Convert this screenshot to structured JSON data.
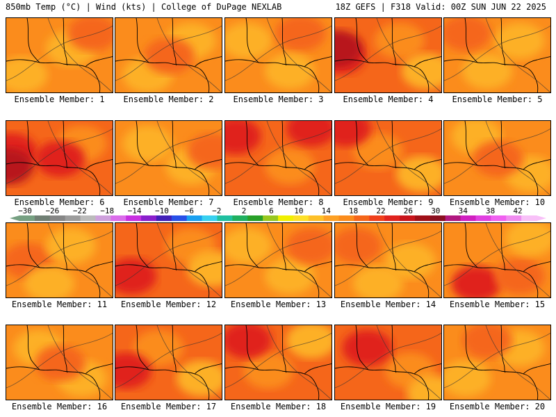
{
  "header": {
    "left": "850mb Temp (°C) | Wind (kts) | College of DuPage NEXLAB",
    "right": "18Z GEFS | F318 Valid: 00Z SUN JUN 22 2025"
  },
  "colors": {
    "light_orange": "#fdb027",
    "orange": "#fb8c1c",
    "dark_orange": "#f5661a",
    "red": "#e0231e",
    "dark_red": "#b8181b",
    "contour": "#000000"
  },
  "members": [
    {
      "label": "Ensemble Member: 1",
      "bg": "orange",
      "blobs": [
        [
          "light_orange",
          0.15,
          0.75
        ],
        [
          "light_orange",
          0.6,
          0.4
        ],
        [
          "dark_orange",
          0.8,
          0.2
        ]
      ]
    },
    {
      "label": "Ensemble Member: 2",
      "bg": "orange",
      "blobs": [
        [
          "light_orange",
          0.3,
          0.75
        ],
        [
          "light_orange",
          0.7,
          0.3
        ],
        [
          "dark_orange",
          0.5,
          0.5
        ]
      ]
    },
    {
      "label": "Ensemble Member: 3",
      "bg": "orange",
      "blobs": [
        [
          "light_orange",
          0.2,
          0.3
        ],
        [
          "dark_orange",
          0.7,
          0.2
        ],
        [
          "light_orange",
          0.6,
          0.7
        ]
      ]
    },
    {
      "label": "Ensemble Member: 4",
      "bg": "dark_orange",
      "blobs": [
        [
          "red",
          0.05,
          0.5
        ],
        [
          "dark_red",
          0.02,
          0.4
        ],
        [
          "orange",
          0.6,
          0.3
        ],
        [
          "light_orange",
          0.85,
          0.7
        ]
      ]
    },
    {
      "label": "Ensemble Member: 5",
      "bg": "orange",
      "blobs": [
        [
          "light_orange",
          0.7,
          0.3
        ],
        [
          "light_orange",
          0.4,
          0.7
        ],
        [
          "dark_orange",
          0.2,
          0.2
        ]
      ]
    },
    {
      "label": "Ensemble Member: 6",
      "bg": "dark_orange",
      "blobs": [
        [
          "red",
          0.05,
          0.4
        ],
        [
          "dark_red",
          0.02,
          0.6
        ],
        [
          "orange",
          0.7,
          0.3
        ],
        [
          "red",
          0.5,
          0.5
        ]
      ]
    },
    {
      "label": "Ensemble Member: 7",
      "bg": "orange",
      "blobs": [
        [
          "light_orange",
          0.3,
          0.3
        ],
        [
          "light_orange",
          0.7,
          0.6
        ],
        [
          "dark_orange",
          0.9,
          0.4
        ]
      ]
    },
    {
      "label": "Ensemble Member: 8",
      "bg": "dark_orange",
      "blobs": [
        [
          "red",
          0.1,
          0.2
        ],
        [
          "orange",
          0.6,
          0.6
        ],
        [
          "red",
          0.8,
          0.1
        ]
      ]
    },
    {
      "label": "Ensemble Member: 9",
      "bg": "dark_orange",
      "blobs": [
        [
          "orange",
          0.4,
          0.4
        ],
        [
          "light_orange",
          0.8,
          0.7
        ],
        [
          "red",
          0.1,
          0.1
        ]
      ]
    },
    {
      "label": "Ensemble Member: 10",
      "bg": "orange",
      "blobs": [
        [
          "light_orange",
          0.3,
          0.2
        ],
        [
          "light_orange",
          0.8,
          0.7
        ],
        [
          "dark_orange",
          0.5,
          0.5
        ]
      ]
    },
    {
      "label": "Ensemble Member: 11",
      "bg": "orange",
      "blobs": [
        [
          "dark_orange",
          0.2,
          0.5
        ],
        [
          "light_orange",
          0.6,
          0.3
        ],
        [
          "light_orange",
          0.4,
          0.8
        ]
      ]
    },
    {
      "label": "Ensemble Member: 12",
      "bg": "dark_orange",
      "blobs": [
        [
          "red",
          0.15,
          0.7
        ],
        [
          "orange",
          0.7,
          0.3
        ],
        [
          "light_orange",
          0.9,
          0.6
        ]
      ]
    },
    {
      "label": "Ensemble Member: 13",
      "bg": "orange",
      "blobs": [
        [
          "light_orange",
          0.2,
          0.3
        ],
        [
          "light_orange",
          0.6,
          0.7
        ],
        [
          "dark_orange",
          0.8,
          0.3
        ]
      ]
    },
    {
      "label": "Ensemble Member: 14",
      "bg": "orange",
      "blobs": [
        [
          "dark_orange",
          0.2,
          0.3
        ],
        [
          "light_orange",
          0.7,
          0.5
        ],
        [
          "light_orange",
          0.4,
          0.8
        ]
      ]
    },
    {
      "label": "Ensemble Member: 15",
      "bg": "orange",
      "blobs": [
        [
          "red",
          0.3,
          0.8
        ],
        [
          "dark_orange",
          0.7,
          0.7
        ],
        [
          "light_orange",
          0.8,
          0.2
        ]
      ]
    },
    {
      "label": "Ensemble Member: 16",
      "bg": "orange",
      "blobs": [
        [
          "light_orange",
          0.3,
          0.3
        ],
        [
          "light_orange",
          0.7,
          0.7
        ],
        [
          "dark_orange",
          0.5,
          0.5
        ]
      ]
    },
    {
      "label": "Ensemble Member: 17",
      "bg": "dark_orange",
      "blobs": [
        [
          "orange",
          0.4,
          0.3
        ],
        [
          "light_orange",
          0.8,
          0.7
        ],
        [
          "red",
          0.1,
          0.6
        ]
      ]
    },
    {
      "label": "Ensemble Member: 18",
      "bg": "dark_orange",
      "blobs": [
        [
          "orange",
          0.4,
          0.6
        ],
        [
          "light_orange",
          0.8,
          0.2
        ],
        [
          "red",
          0.2,
          0.2
        ]
      ]
    },
    {
      "label": "Ensemble Member: 19",
      "bg": "dark_orange",
      "blobs": [
        [
          "orange",
          0.7,
          0.6
        ],
        [
          "light_orange",
          0.9,
          0.9
        ],
        [
          "red",
          0.3,
          0.3
        ]
      ]
    },
    {
      "label": "Ensemble Member: 20",
      "bg": "orange",
      "blobs": [
        [
          "light_orange",
          0.7,
          0.3
        ],
        [
          "light_orange",
          0.2,
          0.7
        ],
        [
          "dark_orange",
          0.4,
          0.2
        ]
      ]
    }
  ],
  "colorbar": {
    "labels": [
      "−30",
      "−26",
      "−22",
      "−18",
      "−14",
      "−10",
      "−6",
      "−2",
      "2",
      "6",
      "10",
      "14",
      "18",
      "22",
      "26",
      "30",
      "34",
      "38",
      "42"
    ],
    "colors": [
      "#76a082",
      "#707f74",
      "#868686",
      "#9c9c9c",
      "#bbbbbb",
      "#cea0dc",
      "#da6cea",
      "#c830e0",
      "#8a20cc",
      "#4220b8",
      "#2850e8",
      "#1aa0f0",
      "#38d0f0",
      "#20c0a0",
      "#20b060",
      "#28a028",
      "#98c820",
      "#f0f000",
      "#fde028",
      "#fdc028",
      "#fda024",
      "#fb8c1c",
      "#f5661a",
      "#f0401c",
      "#e0231e",
      "#c8141b",
      "#a01018",
      "#8a1020",
      "#b01880",
      "#d020c0",
      "#e040e0",
      "#f060f0",
      "#f08cf0",
      "#f8c0f8"
    ]
  }
}
